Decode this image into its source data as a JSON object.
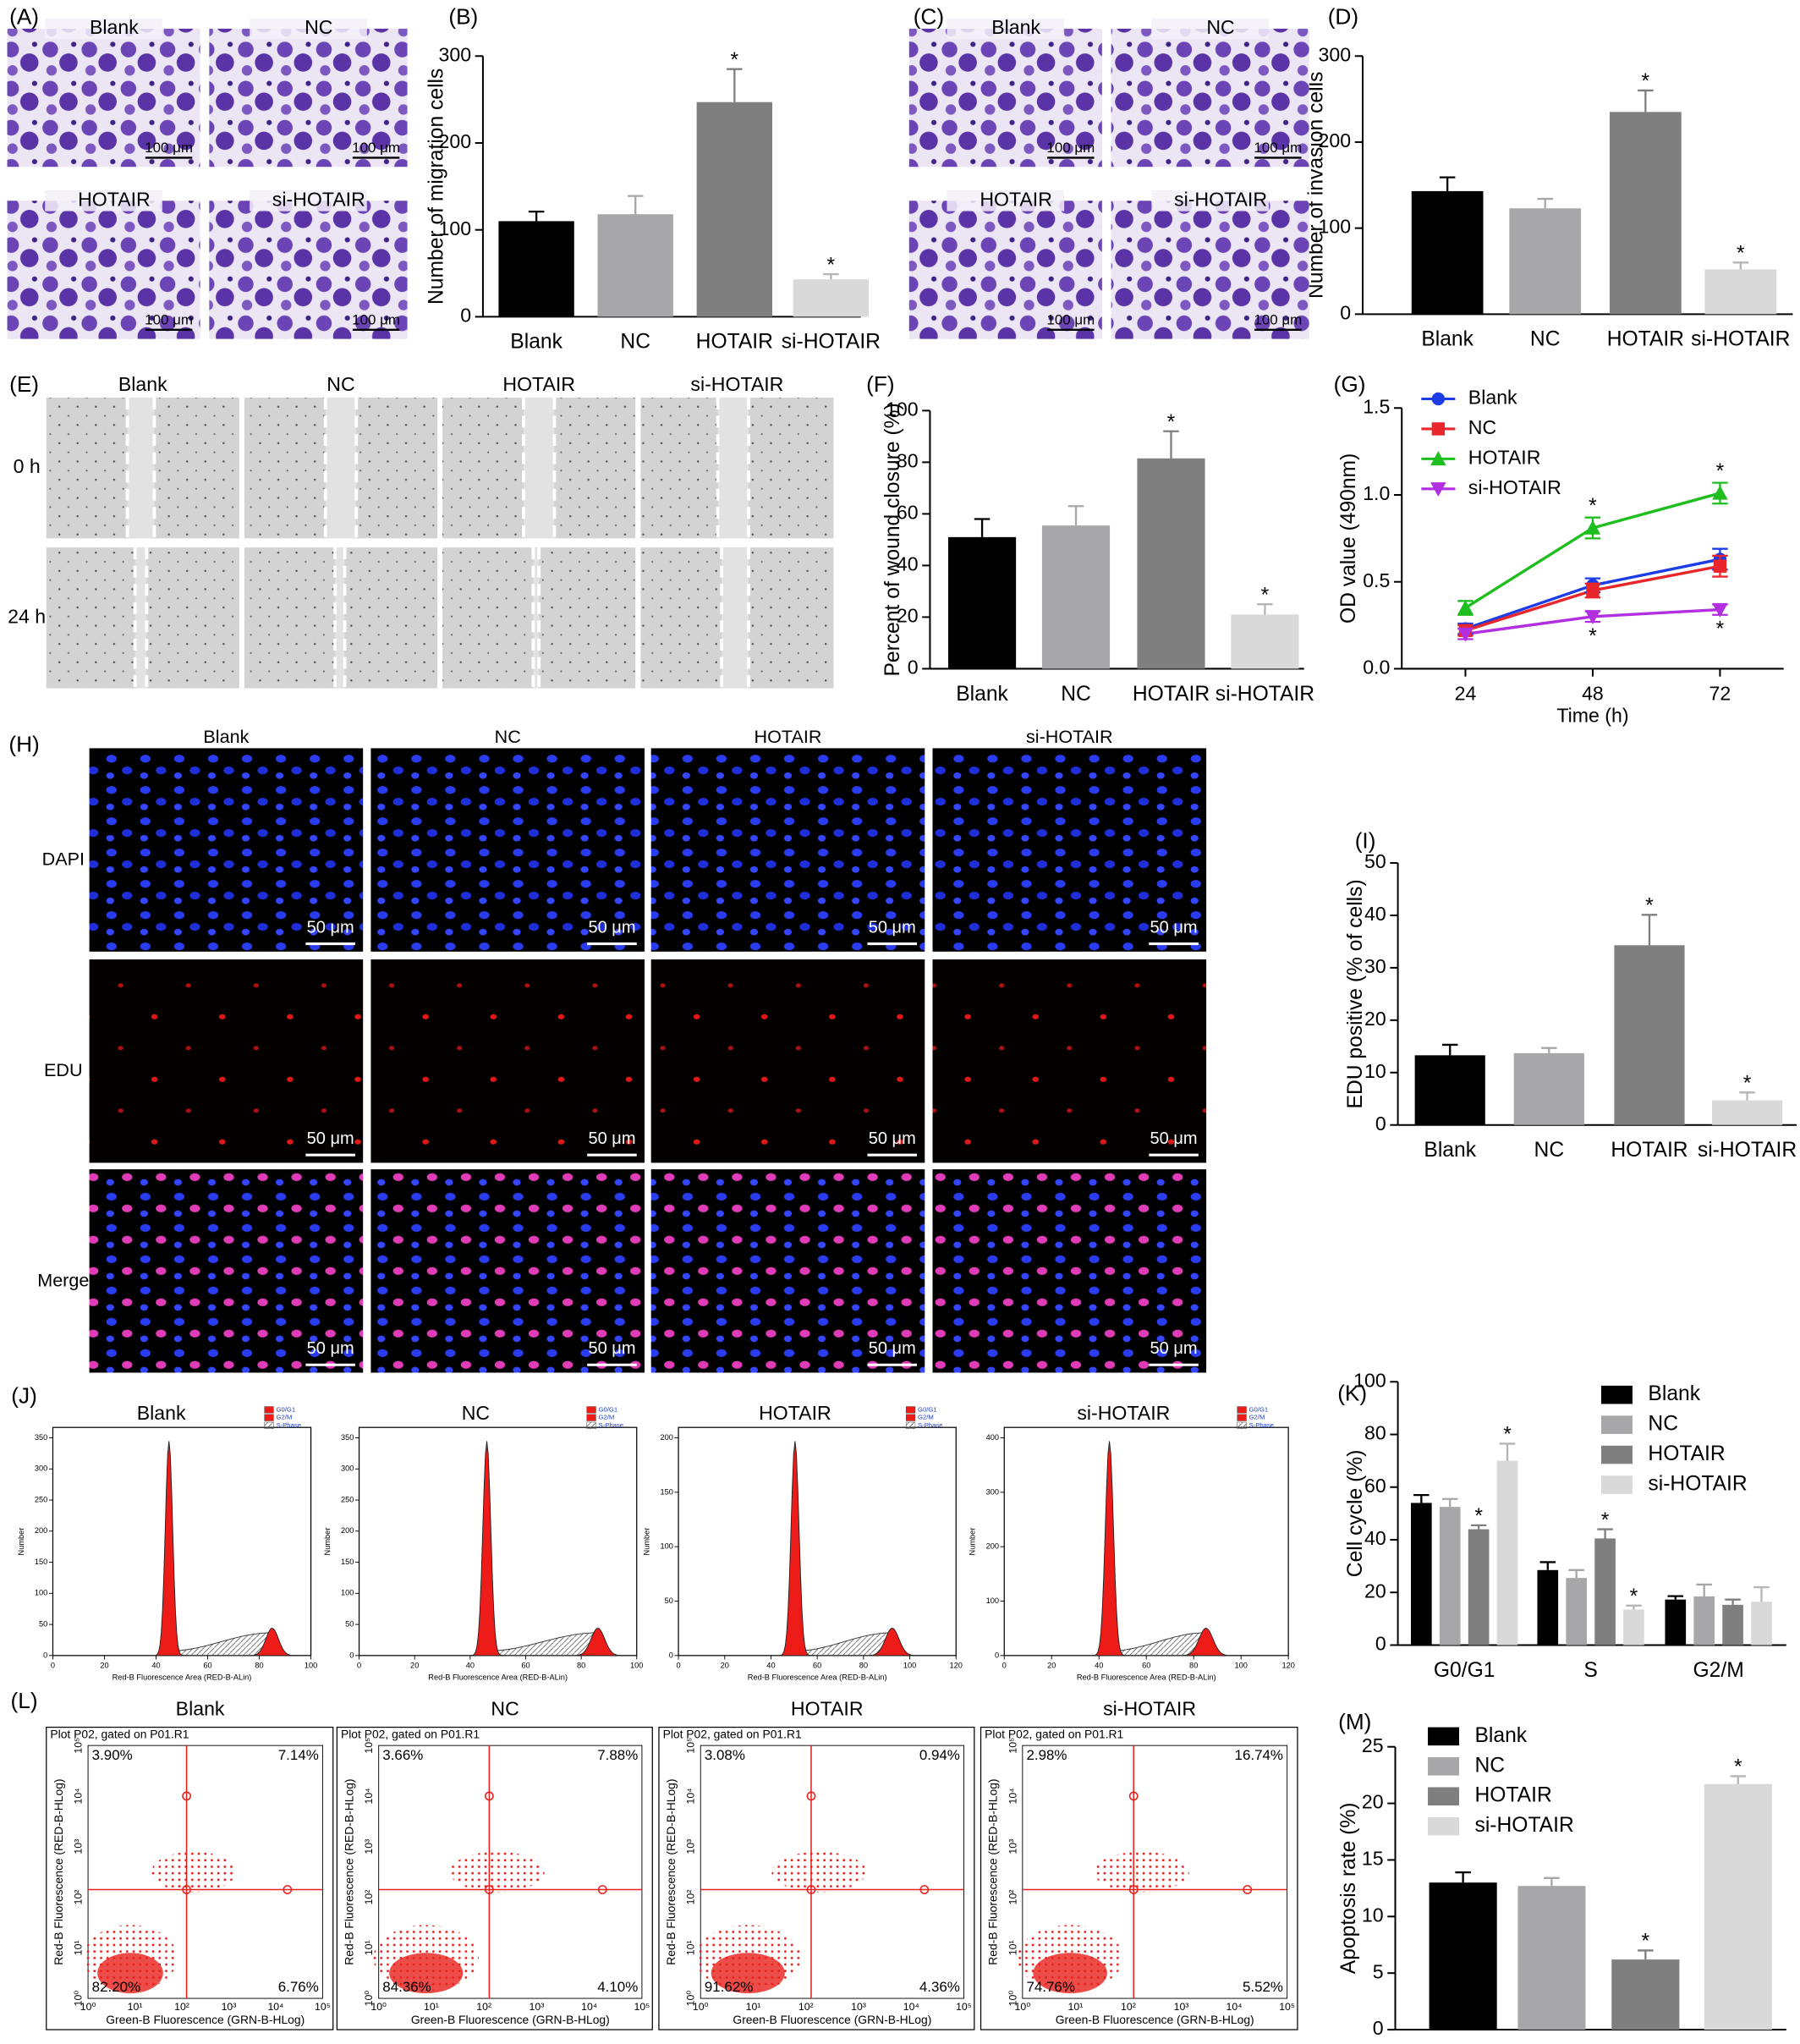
{
  "chart_data": [
    {
      "label": "(B)",
      "type": "bar",
      "ylabel": "Number of migration cells",
      "categories": [
        "Blank",
        "NC",
        "HOTAIR",
        "si-HOTAIR"
      ],
      "values": [
        110,
        118,
        247,
        43
      ],
      "errors": [
        11,
        21,
        38,
        6
      ],
      "significance": [
        null,
        null,
        "*",
        "*"
      ],
      "colors": [
        "#000000",
        "#a7a7a9",
        "#7f7f7f",
        "#d9d9d9"
      ],
      "ylim": [
        0,
        300
      ],
      "yticks": [
        0,
        100,
        200,
        300
      ]
    },
    {
      "label": "(D)",
      "type": "bar",
      "ylabel": "Number of invasion cells",
      "categories": [
        "Blank",
        "NC",
        "HOTAIR",
        "si-HOTAIR"
      ],
      "values": [
        143,
        123,
        235,
        52
      ],
      "errors": [
        16,
        11,
        25,
        8
      ],
      "significance": [
        null,
        null,
        "*",
        "*"
      ],
      "colors": [
        "#000000",
        "#a7a7a9",
        "#7f7f7f",
        "#d9d9d9"
      ],
      "ylim": [
        0,
        300
      ],
      "yticks": [
        0,
        100,
        200,
        300
      ]
    },
    {
      "label": "(F)",
      "type": "bar",
      "ylabel": "Percent of wound closure (%)",
      "categories": [
        "Blank",
        "NC",
        "HOTAIR",
        "si-HOTAIR"
      ],
      "values": [
        51,
        55.5,
        81.5,
        21
      ],
      "errors": [
        7,
        7.5,
        10.5,
        4
      ],
      "significance": [
        null,
        null,
        "*",
        "*"
      ],
      "colors": [
        "#000000",
        "#a7a7a9",
        "#7f7f7f",
        "#d9d9d9"
      ],
      "ylim": [
        0,
        100
      ],
      "yticks": [
        0,
        20,
        40,
        60,
        80,
        100
      ]
    },
    {
      "label": "(G)",
      "type": "line",
      "xlabel": "Time (h)",
      "ylabel": "OD value (490nm)",
      "x": [
        24,
        48,
        72
      ],
      "xlim": [
        12,
        84
      ],
      "xticks": [
        24,
        48,
        72
      ],
      "ylim": [
        0,
        1.5
      ],
      "yticks": [
        {
          "value": 0,
          "label": "0.0"
        },
        0.5,
        {
          "value": 1,
          "label": "1.0"
        },
        1.5
      ],
      "legend": "upper left",
      "series": [
        {
          "name": "Blank",
          "color": "#1c3ce6",
          "marker": "circle",
          "values": [
            0.23,
            0.48,
            0.63
          ],
          "errors": [
            0.03,
            0.04,
            0.06
          ],
          "significance": [
            null,
            null,
            null
          ]
        },
        {
          "name": "NC",
          "color": "#e8262b",
          "marker": "square",
          "values": [
            0.22,
            0.45,
            0.59
          ],
          "errors": [
            0.03,
            0.04,
            0.06
          ],
          "significance": [
            null,
            null,
            null
          ]
        },
        {
          "name": "HOTAIR",
          "color": "#1fbe1f",
          "marker": "triangle-up",
          "values": [
            0.35,
            0.81,
            1.01
          ],
          "errors": [
            0.04,
            0.06,
            0.06
          ],
          "significance": [
            null,
            "*",
            "*"
          ]
        },
        {
          "name": "si-HOTAIR",
          "color": "#b12fe0",
          "marker": "triangle-down",
          "values": [
            0.2,
            0.3,
            0.34
          ],
          "errors": [
            0.03,
            0.03,
            0.03
          ],
          "significance": [
            null,
            "*",
            "*"
          ]
        }
      ]
    },
    {
      "label": "(I)",
      "type": "bar",
      "ylabel": "EDU positive (% of cells)",
      "categories": [
        "Blank",
        "NC",
        "HOTAIR",
        "si-HOTAIR"
      ],
      "values": [
        13.3,
        13.7,
        34.3,
        4.7
      ],
      "errors": [
        2,
        1,
        5.8,
        1.5
      ],
      "significance": [
        null,
        null,
        "*",
        "*"
      ],
      "colors": [
        "#000000",
        "#a7a7a9",
        "#7f7f7f",
        "#d9d9d9"
      ],
      "ylim": [
        0,
        50
      ],
      "yticks": [
        0,
        10,
        20,
        30,
        40,
        50
      ]
    },
    {
      "label": "(K)",
      "type": "bar",
      "ylabel": "Cell cycle (%)",
      "categories": [
        "G0/G1",
        "S",
        "G2/M"
      ],
      "ylim": [
        0,
        100
      ],
      "yticks": [
        0,
        20,
        40,
        60,
        80,
        100
      ],
      "legend": "upper right",
      "series": [
        {
          "name": "Blank",
          "color": "#000000",
          "values": [
            54,
            28.5,
            17.3
          ],
          "errors": [
            3,
            3,
            1.3
          ],
          "significance": [
            null,
            null,
            null
          ]
        },
        {
          "name": "NC",
          "color": "#a7a7a9",
          "values": [
            52.5,
            25.5,
            18.5
          ],
          "errors": [
            3,
            3,
            4.5
          ],
          "significance": [
            null,
            null,
            null
          ]
        },
        {
          "name": "HOTAIR",
          "color": "#7f7f7f",
          "values": [
            44,
            40.5,
            15.3
          ],
          "errors": [
            1.5,
            3.5,
            2
          ],
          "significance": [
            "*",
            "*",
            null
          ]
        },
        {
          "name": "si-HOTAIR",
          "color": "#d9d9d9",
          "values": [
            70,
            13.5,
            16.5
          ],
          "errors": [
            6.5,
            1.5,
            5.5
          ],
          "significance": [
            "*",
            "*",
            null
          ]
        }
      ]
    },
    {
      "label": "(M)",
      "type": "bar",
      "ylabel": "Apoptosis rate (%)",
      "categories": [
        "Blank",
        "NC",
        "HOTAIR",
        "si-HOTAIR"
      ],
      "values": [
        13,
        12.7,
        6.2,
        21.7
      ],
      "errors": [
        0.9,
        0.7,
        0.8,
        0.7
      ],
      "significance": [
        null,
        null,
        "*",
        "*"
      ],
      "colors": [
        "#000000",
        "#a7a7a9",
        "#7f7f7f",
        "#d9d9d9"
      ],
      "ylim": [
        0,
        25
      ],
      "yticks": [
        0,
        5,
        10,
        15,
        20,
        25
      ],
      "legend": "upper left"
    }
  ],
  "images": {
    "A": {
      "label": "(A)",
      "tiles": [
        {
          "title": "Blank",
          "scale": "100 μm"
        },
        {
          "title": "NC",
          "scale": "100 μm"
        },
        {
          "title": "HOTAIR",
          "scale": "100 μm"
        },
        {
          "title": "si-HOTAIR",
          "scale": "100 μm"
        }
      ]
    },
    "C": {
      "label": "(C)",
      "tiles": [
        {
          "title": "Blank",
          "scale": "100 μm"
        },
        {
          "title": "NC",
          "scale": "100 μm"
        },
        {
          "title": "HOTAIR",
          "scale": "100 μm"
        },
        {
          "title": "si-HOTAIR",
          "scale": "100 μm"
        }
      ]
    },
    "E": {
      "label": "(E)",
      "columns": [
        "Blank",
        "NC",
        "HOTAIR",
        "si-HOTAIR"
      ],
      "rows": [
        "0 h",
        "24 h"
      ]
    },
    "H": {
      "label": "(H)",
      "columns": [
        "Blank",
        "NC",
        "HOTAIR",
        "si-HOTAIR"
      ],
      "rows": [
        "DAPI",
        "EDU",
        "Merge"
      ],
      "scale": "50 μm"
    },
    "J": {
      "label": "(J)",
      "ylabel": "Number",
      "xlabel": "Red-B Fluorescence Area (RED-B-ALin)",
      "legend": [
        "G0/G1",
        "G2/M",
        "S-Phase"
      ],
      "plots": [
        {
          "title": "Blank",
          "xticks": [
            0,
            20,
            40,
            60,
            80,
            100
          ],
          "yticks": [
            0,
            50,
            100,
            150,
            200,
            250,
            300,
            350
          ]
        },
        {
          "title": "NC",
          "xticks": [
            0,
            20,
            40,
            60,
            80,
            100
          ],
          "yticks": [
            0,
            50,
            100,
            150,
            200,
            250,
            300,
            350
          ]
        },
        {
          "title": "HOTAIR",
          "xticks": [
            0,
            20,
            40,
            60,
            80,
            100,
            120
          ],
          "yticks": [
            0,
            50,
            100,
            150,
            200
          ]
        },
        {
          "title": "si-HOTAIR",
          "xticks": [
            0,
            20,
            40,
            60,
            80,
            100,
            120
          ],
          "yticks": [
            0,
            100,
            200,
            300,
            400
          ]
        }
      ]
    },
    "L": {
      "label": "(L)",
      "gate": "Plot P02, gated on P01.R1",
      "xlabel": "Green-B Fluorescence (GRN-B-HLog)",
      "ylabel": "Red-B Fluorescence (RED-B-HLog)",
      "ticks": [
        "10⁰",
        "10¹",
        "10²",
        "10³",
        "10⁴",
        "10⁵"
      ],
      "plots": [
        {
          "title": "Blank",
          "quadrants": [
            "3.90%",
            "7.14%",
            "82.20%",
            "6.76%"
          ]
        },
        {
          "title": "NC",
          "quadrants": [
            "3.66%",
            "7.88%",
            "84.36%",
            "4.10%"
          ]
        },
        {
          "title": "HOTAIR",
          "quadrants": [
            "3.08%",
            "0.94%",
            "91.62%",
            "4.36%"
          ]
        },
        {
          "title": "si-HOTAIR",
          "quadrants": [
            "2.98%",
            "16.74%",
            "74.76%",
            "5.52%"
          ]
        }
      ]
    }
  }
}
